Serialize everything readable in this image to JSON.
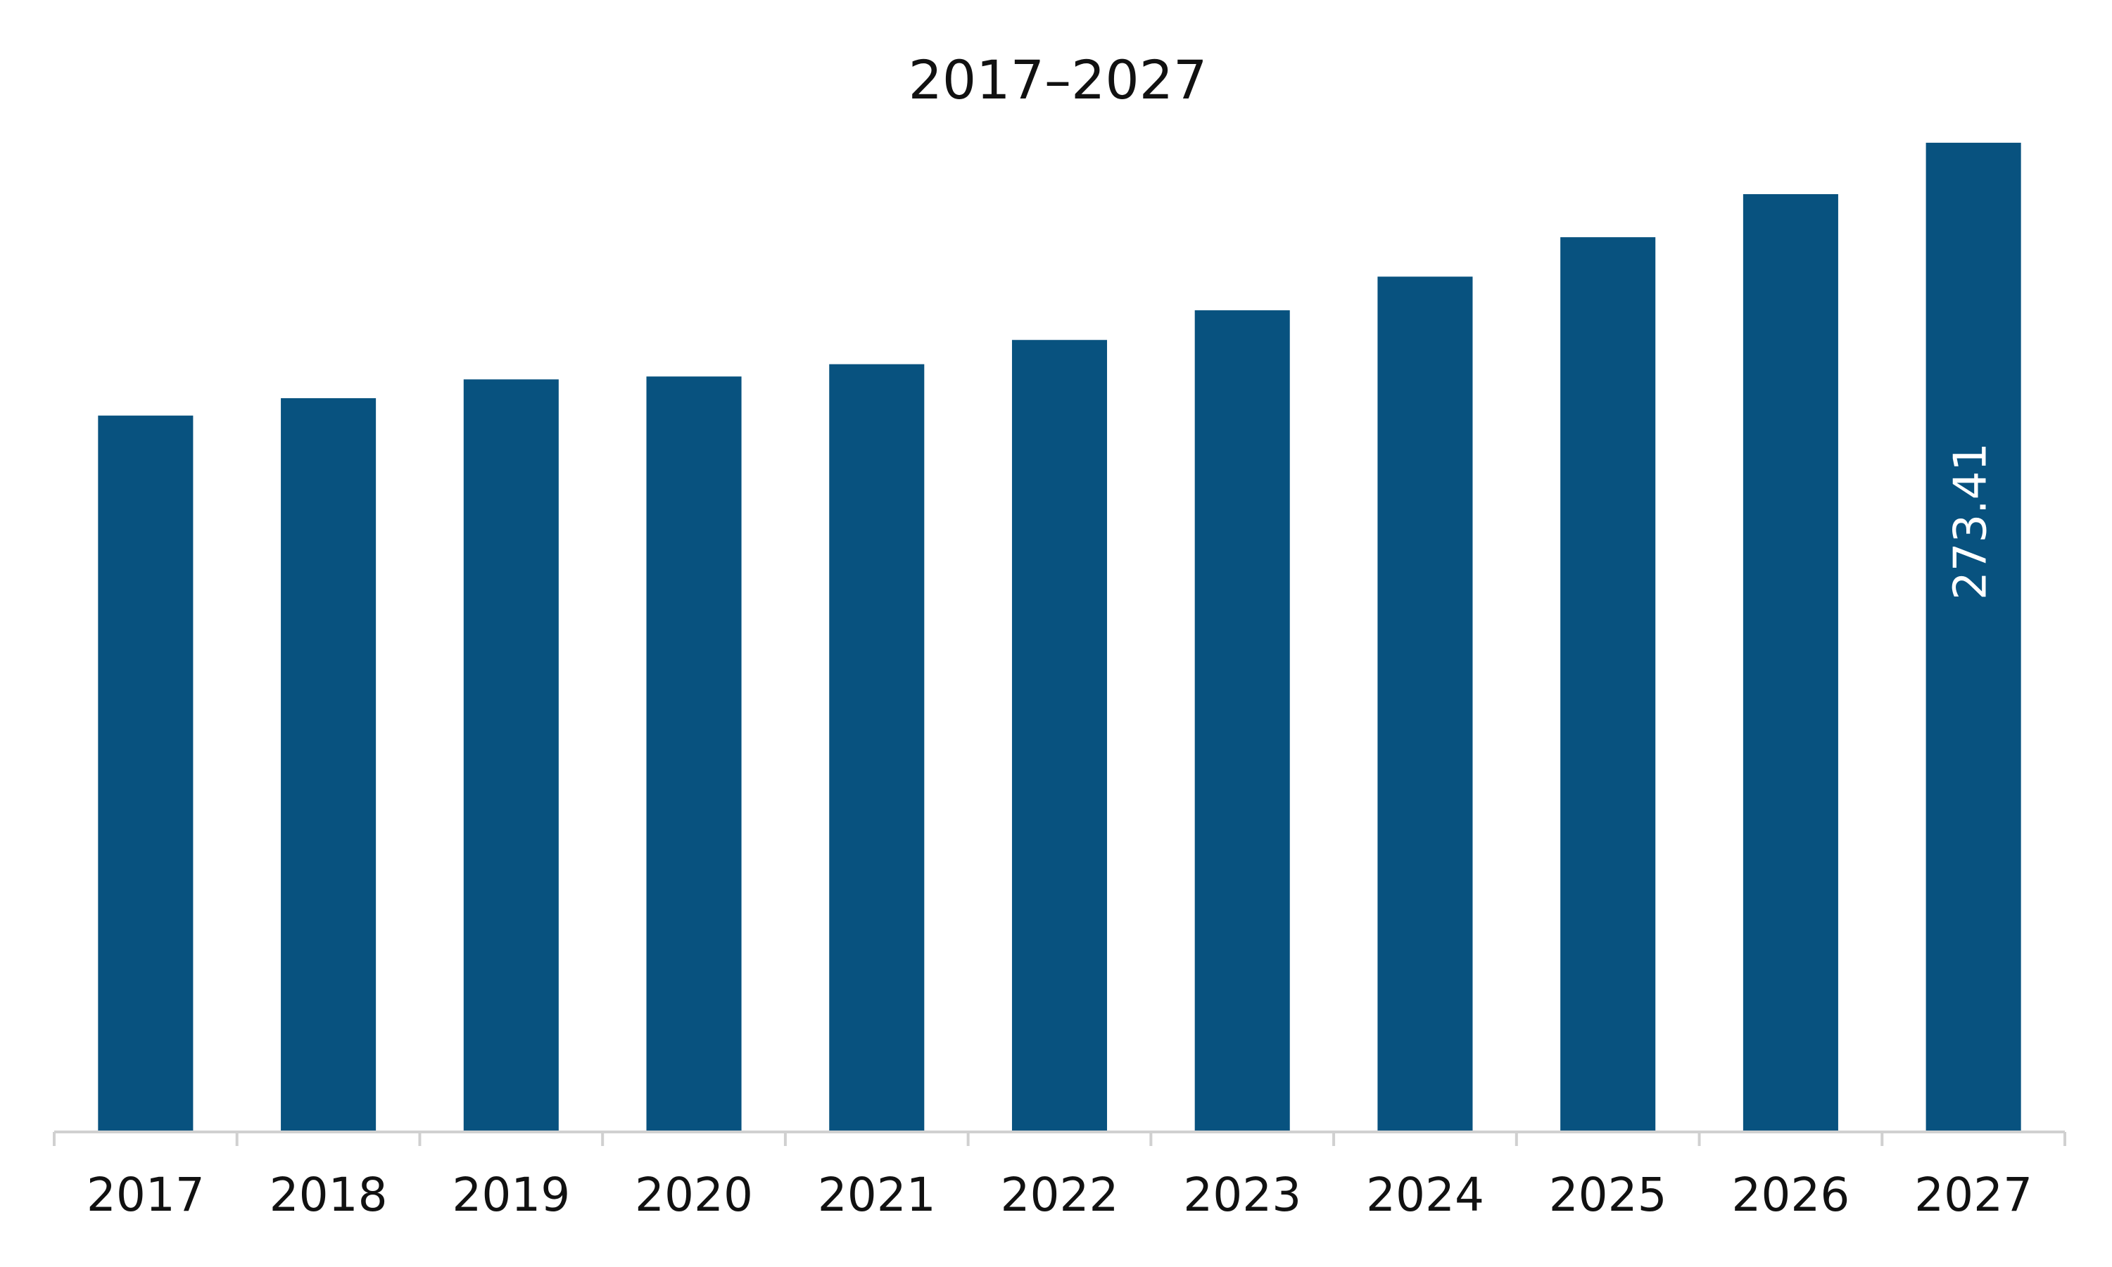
{
  "chart_data": {
    "type": "bar",
    "title": "2017–2027",
    "categories": [
      "2017",
      "2018",
      "2019",
      "2020",
      "2021",
      "2022",
      "2023",
      "2024",
      "2025",
      "2026",
      "2027"
    ],
    "values": [
      198.0,
      202.8,
      208.0,
      208.8,
      212.2,
      218.9,
      227.1,
      236.4,
      247.3,
      259.2,
      273.41
    ],
    "value_labels": [
      null,
      null,
      null,
      null,
      null,
      null,
      null,
      null,
      null,
      null,
      "273.41"
    ],
    "color": "#08527f",
    "ylim": [
      0,
      280
    ]
  }
}
